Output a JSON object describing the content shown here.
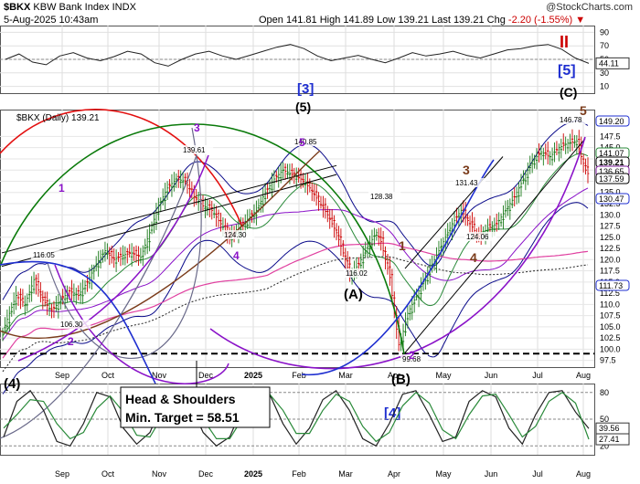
{
  "header": {
    "symbol": "$BKX",
    "name": "KBW Bank Index",
    "exchange": "INDX",
    "datetime": "5-Aug-2025 10:43am",
    "open_label": "Open",
    "open": "141.81",
    "high_label": "High",
    "high": "141.89",
    "low_label": "Low",
    "low": "139.21",
    "last_label": "Last",
    "last": "139.21",
    "chg_label": "Chg",
    "chg": "-2.20 (-1.55%)",
    "watermark": "@StockCharts.com"
  },
  "main_legend": "$BKX (Daily) 139.21",
  "colors": {
    "bull": "#1a7a1a",
    "bear": "#cc0000",
    "blue_wave": "#1f2fd0",
    "purple": "#8a12c8",
    "brown": "#7a3b1a",
    "green": "#0a7a0a",
    "red_arc": "#e31010",
    "navy": "#0a0a8a",
    "pink": "#e040a0"
  },
  "chart_data": [
    {
      "type": "line",
      "panel": "upper-oscillator",
      "y_ticks": [
        10,
        30,
        50,
        70,
        90
      ],
      "ylim": [
        0,
        100
      ],
      "series": [
        {
          "values": [
            50,
            58,
            46,
            42,
            55,
            60,
            52,
            48,
            54,
            62,
            58,
            45,
            40,
            50,
            58,
            62,
            55,
            50,
            56,
            62,
            68,
            72,
            66,
            55,
            48,
            52,
            56,
            50,
            45,
            52,
            60,
            55,
            58,
            62,
            56,
            52,
            58,
            64,
            66,
            70,
            72,
            65,
            52,
            44.11
          ]
        }
      ],
      "value_labels": [
        "44.11"
      ]
    },
    {
      "type": "candlestick",
      "panel": "price",
      "legend": "$BKX (Daily) 139.21",
      "x_ticks": [
        "Sep",
        "Oct",
        "Nov",
        "Dec",
        "2025",
        "Feb",
        "Mar",
        "Apr",
        "May",
        "Jun",
        "Jul",
        "Aug"
      ],
      "y_ticks": [
        97.5,
        100.0,
        102.5,
        105.0,
        107.5,
        110.0,
        112.5,
        115.0,
        117.5,
        120.0,
        122.5,
        125.0,
        127.5,
        130.0,
        132.5,
        135.0,
        137.5,
        140.0,
        142.5,
        145.0,
        147.5
      ],
      "ylim": [
        96,
        153.5
      ],
      "close_path": [
        [
          0,
          104
        ],
        [
          6,
          112
        ],
        [
          10,
          110
        ],
        [
          14,
          115.5
        ],
        [
          18,
          111
        ],
        [
          22,
          108.5
        ],
        [
          26,
          111
        ],
        [
          30,
          113
        ],
        [
          34,
          112
        ],
        [
          38,
          115
        ],
        [
          42,
          119
        ],
        [
          46,
          122
        ],
        [
          50,
          120
        ],
        [
          54,
          121
        ],
        [
          58,
          121.5
        ],
        [
          62,
          120.5
        ],
        [
          66,
          126
        ],
        [
          70,
          132
        ],
        [
          74,
          136
        ],
        [
          78,
          138
        ],
        [
          82,
          137.5
        ],
        [
          86,
          134
        ],
        [
          90,
          132
        ],
        [
          94,
          131
        ],
        [
          98,
          128
        ],
        [
          102,
          125
        ],
        [
          106,
          127
        ],
        [
          110,
          129
        ],
        [
          114,
          131
        ],
        [
          118,
          135
        ],
        [
          122,
          138
        ],
        [
          126,
          140
        ],
        [
          130,
          139
        ],
        [
          134,
          138
        ],
        [
          138,
          136
        ],
        [
          142,
          133
        ],
        [
          146,
          130
        ],
        [
          150,
          126
        ],
        [
          154,
          120
        ],
        [
          156,
          116.5
        ],
        [
          160,
          119
        ],
        [
          164,
          123
        ],
        [
          168,
          126
        ],
        [
          170,
          124
        ],
        [
          172,
          120
        ],
        [
          174,
          116
        ],
        [
          176,
          108
        ],
        [
          178,
          101
        ],
        [
          180,
          104
        ],
        [
          182,
          108
        ],
        [
          184,
          110
        ],
        [
          186,
          112
        ],
        [
          190,
          116
        ],
        [
          194,
          120
        ],
        [
          198,
          124
        ],
        [
          202,
          128
        ],
        [
          206,
          131
        ],
        [
          210,
          128
        ],
        [
          214,
          125
        ],
        [
          218,
          127
        ],
        [
          222,
          128
        ],
        [
          226,
          131
        ],
        [
          230,
          134
        ],
        [
          234,
          138
        ],
        [
          238,
          142
        ],
        [
          242,
          144
        ],
        [
          246,
          143
        ],
        [
          250,
          145
        ],
        [
          254,
          146
        ],
        [
          258,
          146.5
        ],
        [
          260,
          143
        ],
        [
          262,
          140
        ],
        [
          263,
          139.21
        ]
      ],
      "price_annotations": [
        {
          "value": "116.05"
        },
        {
          "value": "106.30"
        },
        {
          "value": "139.61"
        },
        {
          "value": "124.30"
        },
        {
          "value": "140.85"
        },
        {
          "value": "116.02"
        },
        {
          "value": "128.38"
        },
        {
          "value": "99.68"
        },
        {
          "value": "131.43"
        },
        {
          "value": "124.06"
        },
        {
          "value": "146.78"
        }
      ],
      "right_value_labels": [
        "149.20",
        "141.07",
        "139.21",
        "136.65",
        "137.59",
        "130.47",
        "111.73"
      ],
      "wave_labels": [
        "[3]",
        "(5)",
        "[5]",
        "(C)",
        "II",
        "5",
        "3",
        "1",
        "5",
        "4",
        "1",
        "2",
        "3",
        "4",
        "(A)",
        "(B)",
        "2",
        "1",
        "3",
        "4",
        "(4)"
      ],
      "horizontal_level": 99.0
    },
    {
      "type": "line",
      "panel": "lower-oscillator",
      "y_ticks": [
        20,
        50,
        80
      ],
      "ylim": [
        10,
        90
      ],
      "series": [
        {
          "values": [
            30,
            70,
            82,
            60,
            25,
            20,
            45,
            80,
            75,
            40,
            22,
            35,
            70,
            82,
            68,
            35,
            20,
            30,
            65,
            80,
            78,
            45,
            22,
            40,
            72,
            82,
            60,
            28,
            20,
            45,
            78,
            82,
            55,
            25,
            30,
            70,
            82,
            75,
            40,
            22,
            55,
            80,
            82,
            58,
            39.56
          ]
        },
        {
          "values": [
            40,
            55,
            72,
            70,
            45,
            28,
            35,
            62,
            76,
            58,
            32,
            30,
            55,
            76,
            74,
            50,
            28,
            28,
            52,
            74,
            78,
            60,
            34,
            34,
            60,
            78,
            70,
            42,
            25,
            35,
            65,
            80,
            68,
            38,
            28,
            55,
            76,
            78,
            55,
            30,
            42,
            70,
            80,
            68,
            27.41
          ]
        }
      ],
      "value_labels": [
        "39.56",
        "27.41"
      ],
      "wave_labels": [
        "[4]"
      ],
      "callout": {
        "line1": "Head & Shoulders",
        "line2": "Min. Target = 58.51"
      }
    }
  ]
}
